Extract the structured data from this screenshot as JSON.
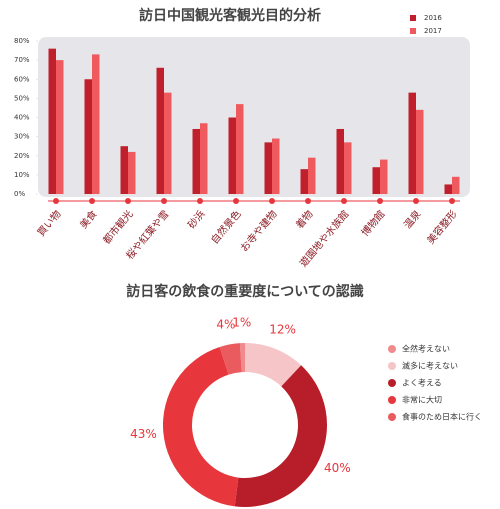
{
  "chart_data": [
    {
      "type": "bar",
      "title": "訪日中国観光客観光目的分析",
      "categories": [
        "買い物",
        "美食",
        "都市観光",
        "桜や紅葉や雪",
        "砂浜",
        "自然景色",
        "お寺や建物",
        "着物",
        "遊園地や水族館",
        "博物館",
        "温泉",
        "美容整形"
      ],
      "series": [
        {
          "name": "2016",
          "color": "#c0202c",
          "values": [
            76,
            60,
            25,
            66,
            34,
            40,
            27,
            13,
            34,
            14,
            53,
            5
          ]
        },
        {
          "name": "2017",
          "color": "#ef5a5f",
          "values": [
            70,
            73,
            22,
            53,
            37,
            47,
            29,
            19,
            27,
            18,
            44,
            9
          ]
        }
      ],
      "ylim": [
        0,
        80
      ],
      "yticks": [
        {
          "value": 0,
          "label": "0%"
        },
        {
          "value": 10,
          "label": "10%"
        },
        {
          "value": 20,
          "label": "20%"
        },
        {
          "value": 30,
          "label": "30%"
        },
        {
          "value": 40,
          "label": "40%"
        },
        {
          "value": 50,
          "label": "50%"
        },
        {
          "value": 60,
          "label": "60%"
        },
        {
          "value": 70,
          "label": "70%"
        },
        {
          "value": 80,
          "label": "80%"
        }
      ],
      "legend": "top-right"
    },
    {
      "type": "donut",
      "title": "訪日客の飲食の重要度についての認識",
      "categories": [
        "全然考えない",
        "滅多に考えない",
        "よく考える",
        "非常に大切",
        "食事のため日本に行く"
      ],
      "values": [
        1,
        12,
        40,
        43,
        4
      ],
      "value_labels": [
        "1%",
        "12%",
        "40%",
        "43%",
        "4%"
      ],
      "colors": [
        "#f08a8c",
        "#f6c5c8",
        "#b81e2a",
        "#e8363d",
        "#ea5b60"
      ],
      "legend": "right"
    }
  ]
}
